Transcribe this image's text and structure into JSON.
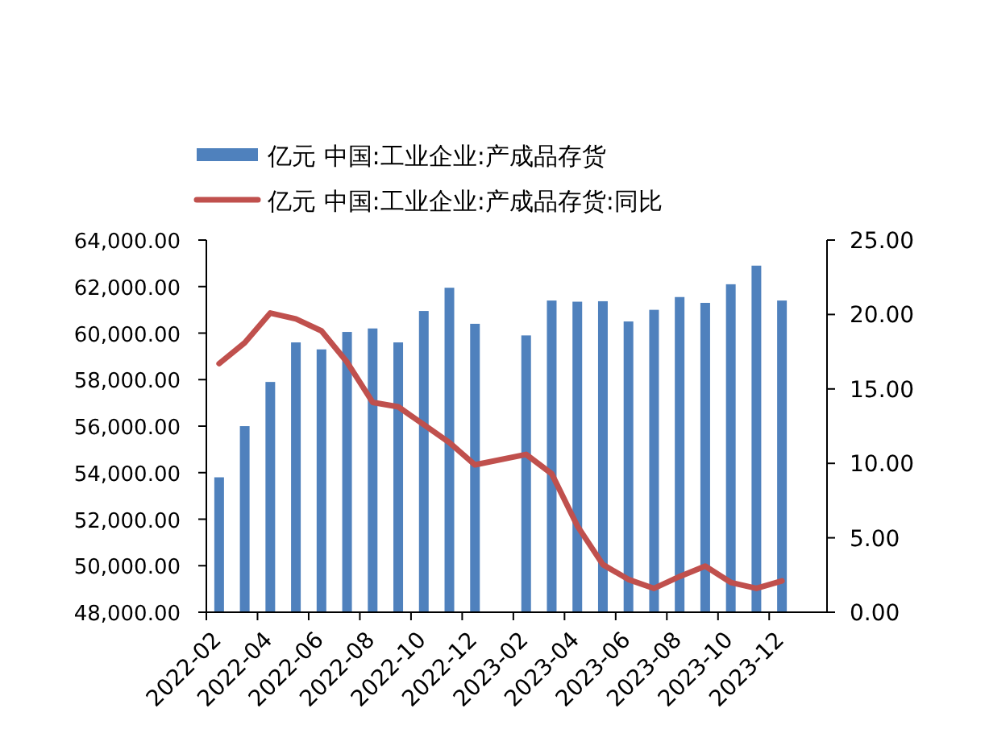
{
  "chart_data": {
    "type": "bar",
    "categories": [
      "2022-02",
      null,
      "2022-04",
      null,
      "2022-06",
      null,
      "2022-08",
      null,
      "2022-10",
      null,
      "2022-12",
      null,
      "2023-02",
      null,
      "2023-04",
      null,
      "2023-06",
      null,
      "2023-08",
      null,
      "2023-10",
      null,
      "2023-12"
    ],
    "series": [
      {
        "name": "亿元 中国:工业企业:产成品存货",
        "color": "#4f81bd",
        "values": [
          53800,
          56000,
          57900,
          59600,
          59300,
          60050,
          60200,
          59600,
          60950,
          61950,
          60400,
          null,
          59900,
          61400,
          61350,
          61370,
          60500,
          61000,
          61550,
          61300,
          62100,
          62900,
          61400
        ]
      },
      {
        "name": "亿元 中国:工业企业:产成品存货:同比",
        "type": "line",
        "axis": "y2",
        "color": "#c0504d",
        "values": [
          16.7,
          18.1,
          20.1,
          19.7,
          18.9,
          16.8,
          14.1,
          13.8,
          12.6,
          11.4,
          9.9,
          null,
          10.6,
          9.3,
          5.8,
          3.2,
          2.2,
          1.6,
          2.4,
          3.1,
          2.0,
          1.6,
          2.1
        ]
      }
    ],
    "ylim": [
      48000,
      64000
    ],
    "yticks": [
      {
        "value": 48000,
        "label": "48,000.00"
      },
      {
        "value": 50000,
        "label": "50,000.00"
      },
      {
        "value": 52000,
        "label": "52,000.00"
      },
      {
        "value": 54000,
        "label": "54,000.00"
      },
      {
        "value": 56000,
        "label": "56,000.00"
      },
      {
        "value": 58000,
        "label": "58,000.00"
      },
      {
        "value": 60000,
        "label": "60,000.00"
      },
      {
        "value": 62000,
        "label": "62,000.00"
      },
      {
        "value": 64000,
        "label": "64,000.00"
      }
    ],
    "y2lim": [
      0,
      25
    ],
    "y2ticks": [
      {
        "value": 0,
        "label": "0.00"
      },
      {
        "value": 5,
        "label": "5.00"
      },
      {
        "value": 10,
        "label": "10.00"
      },
      {
        "value": 15,
        "label": "15.00"
      },
      {
        "value": 20,
        "label": "20.00"
      },
      {
        "value": 25,
        "label": "25.00"
      }
    ],
    "legend": "top",
    "grid": false
  }
}
